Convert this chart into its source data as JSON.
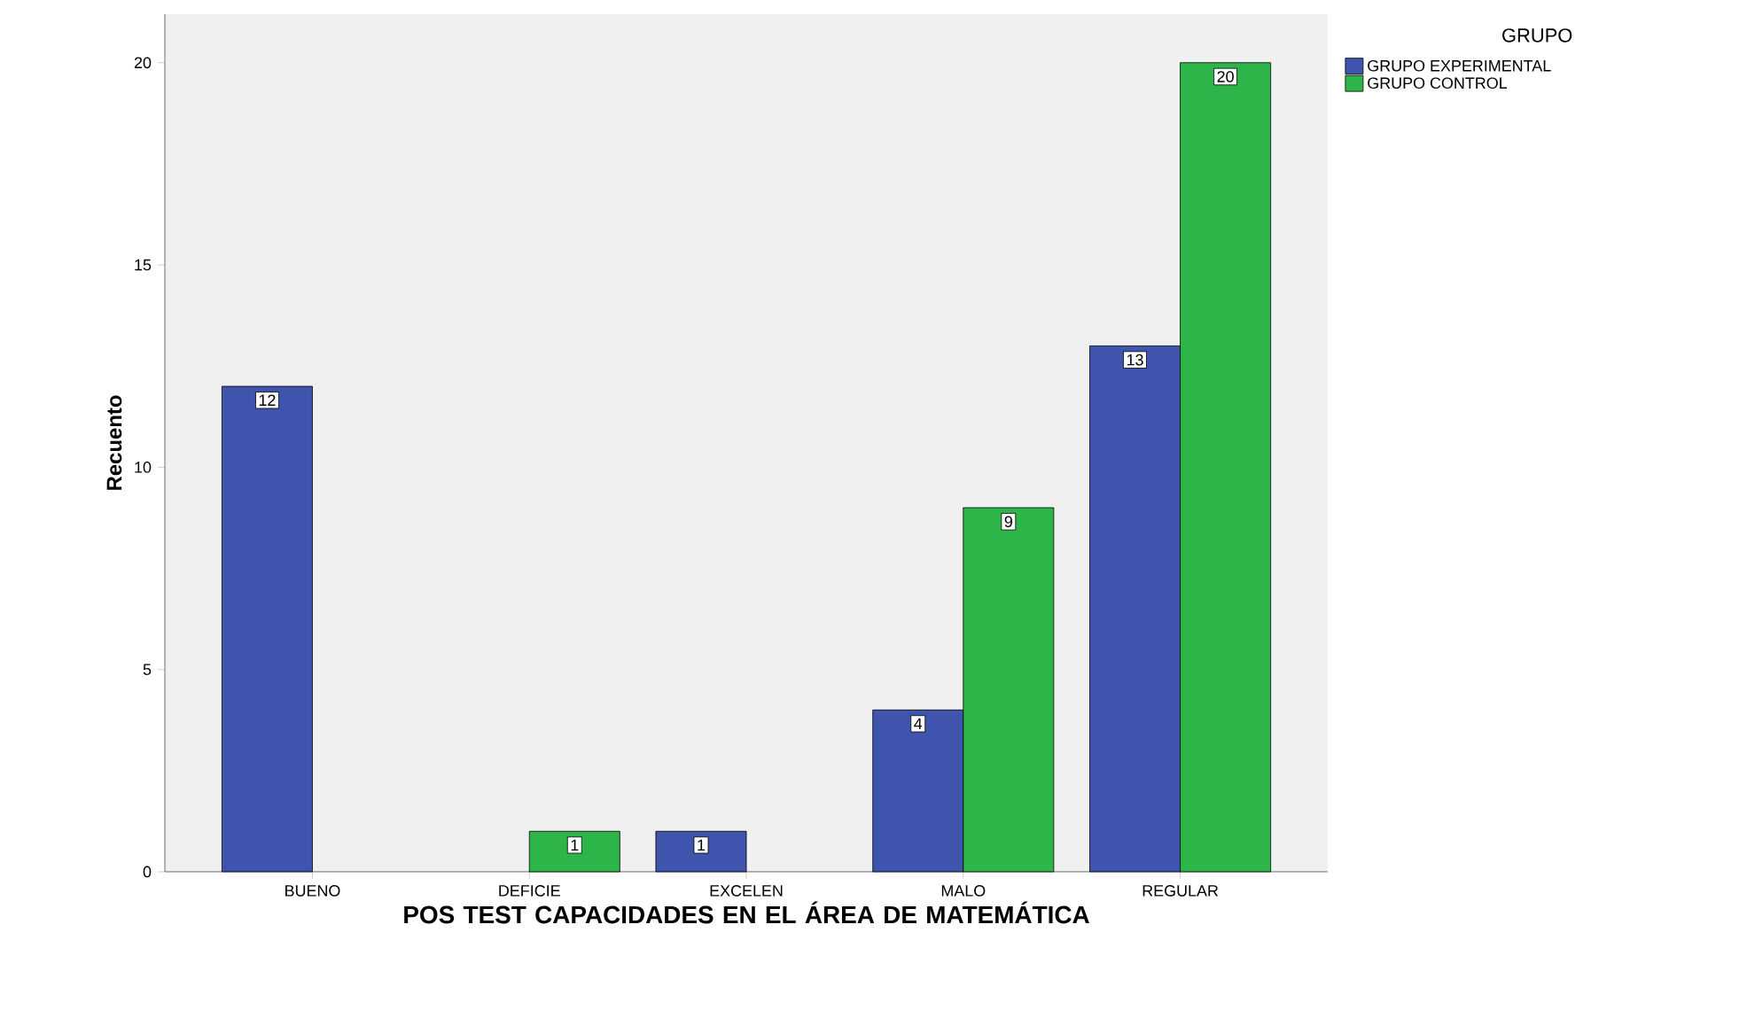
{
  "chart_data": {
    "type": "bar",
    "xlabel": "POS TEST CAPACIDADES EN EL ÁREA DE MATEMÁTICA",
    "ylabel": "Recuento",
    "legend_title": "GRUPO",
    "categories": [
      "BUENO",
      "DEFICIE",
      "EXCELEN",
      "MALO",
      "REGULAR"
    ],
    "series": [
      {
        "name": "GRUPO EXPERIMENTAL",
        "color": "#3e54ad",
        "values": [
          12,
          null,
          1,
          4,
          13
        ]
      },
      {
        "name": "GRUPO CONTROL",
        "color": "#2db54a",
        "values": [
          null,
          1,
          null,
          9,
          20
        ]
      }
    ],
    "ylim": [
      0,
      21.2
    ],
    "yticks": [
      0,
      5,
      10,
      15,
      20
    ],
    "data_labels": true,
    "legend": "right",
    "grid": false
  }
}
